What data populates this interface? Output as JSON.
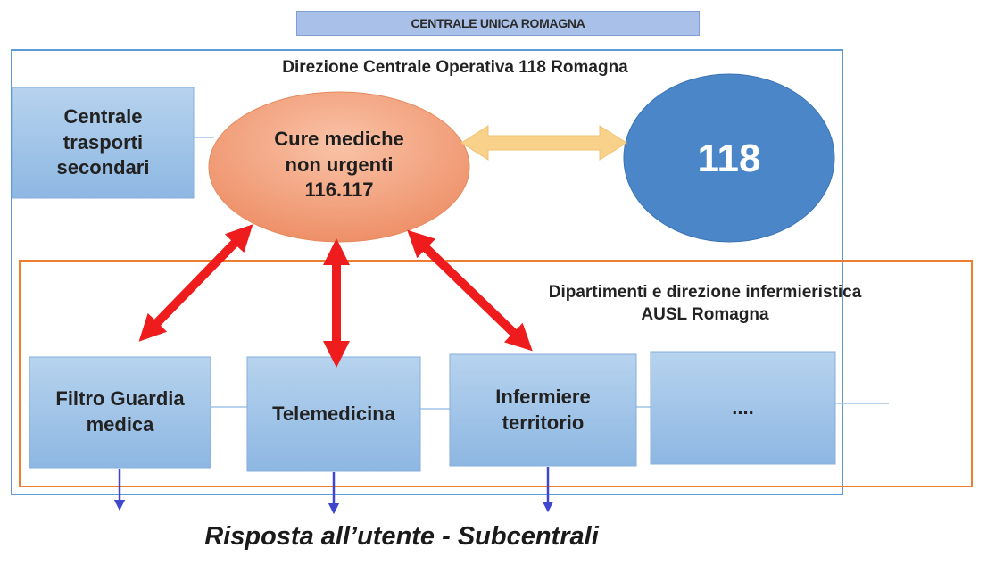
{
  "banner": {
    "title": "CENTRALE UNICA ROMAGNA"
  },
  "outer_frame": {
    "title": "Direzione Centrale Operativa 118 Romagna"
  },
  "inner_frame": {
    "title": "Dipartimenti e direzione infermieristica\nAUSL Romagna"
  },
  "nodes": {
    "trasporti": "Centrale\ntrasporti\nsecondari",
    "cure_mediche": "Cure mediche\nnon urgenti\n116.117",
    "emergenza": "118",
    "filtro": "Filtro Guardia\nmedica",
    "telemedicina": "Telemedicina",
    "infermiere": "Infermiere\nterritorio",
    "altro": "...."
  },
  "caption": "Risposta all’utente - Subcentrali",
  "colors": {
    "blue_frame": "#5b9bd5",
    "orange_frame": "#ed7d31",
    "box_fill": "#9dc3e6",
    "ellipse_orange": "#f4a582",
    "ellipse_blue": "#4a86c8",
    "red_arrow": "#ee1c1c",
    "yellow_arrow": "#f8d28a",
    "down_arrow": "#3f48cc"
  }
}
